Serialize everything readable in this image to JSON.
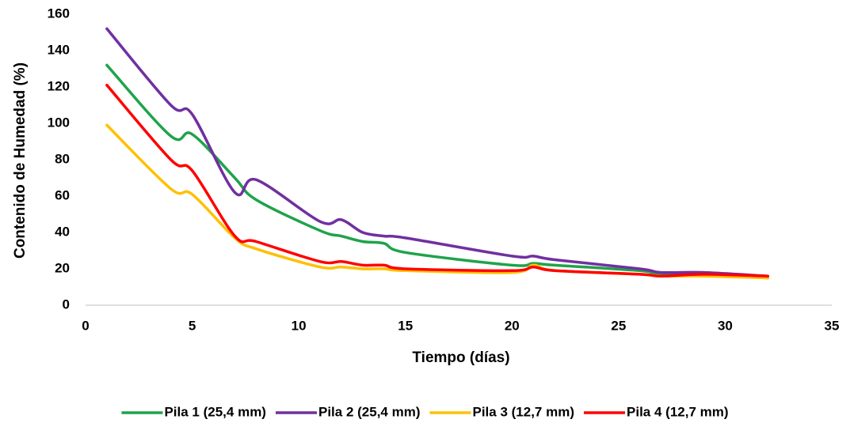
{
  "chart_data": {
    "type": "line",
    "xlabel": "Tiempo (días)",
    "ylabel": "Contenido de Humedad (%)",
    "x": [
      1,
      4,
      5,
      7,
      8,
      11,
      12,
      13,
      14,
      15,
      20,
      21,
      22,
      26,
      27,
      29,
      32
    ],
    "series": [
      {
        "name": "Pila 1 (25,4 mm)",
        "color": "#1fa34a",
        "values": [
          132,
          93,
          94,
          70,
          58,
          41,
          38,
          35,
          34,
          29,
          22,
          23,
          22,
          19,
          17,
          17,
          15
        ]
      },
      {
        "name": "Pila 2 (25,4 mm)",
        "color": "#7030a0",
        "values": [
          152,
          110,
          105,
          62,
          69,
          46,
          47,
          40,
          38,
          37,
          27,
          27,
          25,
          20,
          18,
          18,
          16
        ]
      },
      {
        "name": "Pila 3 (12,7 mm)",
        "color": "#ffc000",
        "values": [
          99,
          64,
          61,
          37,
          31,
          21,
          21,
          20,
          20,
          19,
          18,
          22,
          19,
          17,
          16,
          16,
          15
        ]
      },
      {
        "name": "Pila 4 (12,7 mm)",
        "color": "#ff0000",
        "values": [
          121,
          80,
          74,
          38,
          35,
          24,
          24,
          22,
          22,
          20,
          19,
          21,
          19,
          17,
          16,
          17,
          16
        ]
      }
    ],
    "xlim": [
      0,
      35
    ],
    "xticks": [
      0,
      5,
      10,
      15,
      20,
      25,
      30,
      35
    ],
    "ylim": [
      0,
      160
    ],
    "yticks": [
      0,
      20,
      40,
      60,
      80,
      100,
      120,
      140,
      160
    ],
    "grid": false,
    "legend": "bottom"
  }
}
